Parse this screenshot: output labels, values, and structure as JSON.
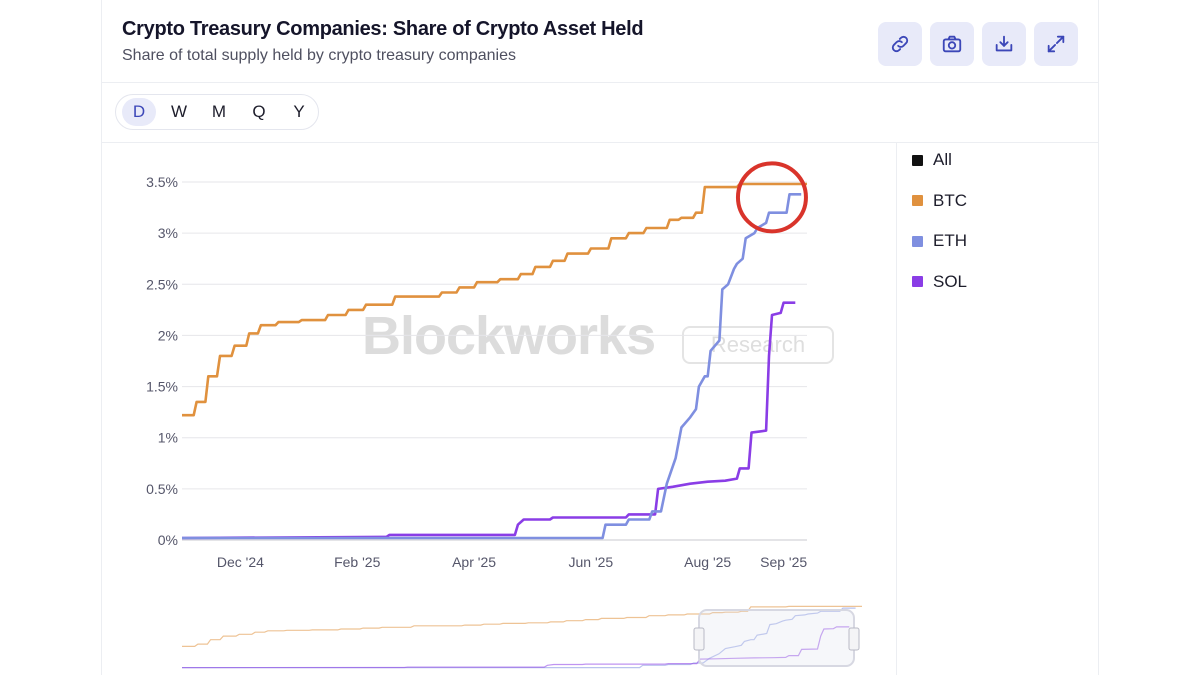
{
  "header": {
    "title": "Crypto Treasury Companies: Share of Crypto Asset Held",
    "subtitle": "Share of total supply held by crypto treasury companies"
  },
  "toolbar": {
    "icons": [
      "link-icon",
      "camera-icon",
      "download-icon",
      "expand-icon"
    ]
  },
  "timeframes": {
    "options": [
      "D",
      "W",
      "M",
      "Q",
      "Y"
    ],
    "selected": "D"
  },
  "legend": {
    "items": [
      {
        "label": "All",
        "color": "#111111"
      },
      {
        "label": "BTC",
        "color": "#e0913e"
      },
      {
        "label": "ETH",
        "color": "#7f8fe0"
      },
      {
        "label": "SOL",
        "color": "#8a3de6"
      }
    ]
  },
  "watermark": {
    "brand": "Blockworks",
    "badge": "Research"
  },
  "annotation": {
    "type": "circle",
    "color": "#d9342b",
    "target": "end of ETH and BTC lines"
  },
  "chart_data": {
    "type": "line",
    "title": "Crypto Treasury Companies: Share of Crypto Asset Held",
    "subtitle": "Share of total supply held by crypto treasury companies",
    "xlabel": "",
    "ylabel": "",
    "x_range": [
      0,
      10.7
    ],
    "x_unit": "months since 2024-11-01",
    "ylim": [
      0,
      3.5
    ],
    "y_ticks": [
      0,
      0.5,
      1,
      1.5,
      2,
      2.5,
      3,
      3.5
    ],
    "y_tick_labels": [
      "0%",
      "0.5%",
      "1%",
      "1.5%",
      "2%",
      "2.5%",
      "3%",
      "3.5%"
    ],
    "x_ticks": [
      1,
      3,
      5,
      7,
      9,
      10.3
    ],
    "x_tick_labels": [
      "Dec '24",
      "Feb '25",
      "Apr '25",
      "Jun '25",
      "Aug '25",
      "Sep '25"
    ],
    "grid": true,
    "legend_position": "right",
    "series": [
      {
        "name": "BTC",
        "color": "#e0913e",
        "points": [
          [
            0,
            1.22
          ],
          [
            0.2,
            1.22
          ],
          [
            0.25,
            1.35
          ],
          [
            0.4,
            1.35
          ],
          [
            0.45,
            1.6
          ],
          [
            0.6,
            1.6
          ],
          [
            0.65,
            1.8
          ],
          [
            0.85,
            1.8
          ],
          [
            0.9,
            1.9
          ],
          [
            1.1,
            1.9
          ],
          [
            1.15,
            2.02
          ],
          [
            1.3,
            2.02
          ],
          [
            1.35,
            2.1
          ],
          [
            1.6,
            2.1
          ],
          [
            1.65,
            2.13
          ],
          [
            2.0,
            2.13
          ],
          [
            2.05,
            2.15
          ],
          [
            2.45,
            2.15
          ],
          [
            2.5,
            2.2
          ],
          [
            2.8,
            2.2
          ],
          [
            2.85,
            2.25
          ],
          [
            3.1,
            2.25
          ],
          [
            3.15,
            2.3
          ],
          [
            3.6,
            2.3
          ],
          [
            3.65,
            2.38
          ],
          [
            4.4,
            2.38
          ],
          [
            4.45,
            2.42
          ],
          [
            4.7,
            2.42
          ],
          [
            4.75,
            2.47
          ],
          [
            5.0,
            2.47
          ],
          [
            5.05,
            2.52
          ],
          [
            5.4,
            2.52
          ],
          [
            5.45,
            2.55
          ],
          [
            5.75,
            2.55
          ],
          [
            5.8,
            2.6
          ],
          [
            6.0,
            2.6
          ],
          [
            6.05,
            2.67
          ],
          [
            6.3,
            2.67
          ],
          [
            6.35,
            2.73
          ],
          [
            6.55,
            2.73
          ],
          [
            6.6,
            2.8
          ],
          [
            6.95,
            2.8
          ],
          [
            7.0,
            2.85
          ],
          [
            7.3,
            2.85
          ],
          [
            7.35,
            2.95
          ],
          [
            7.6,
            2.95
          ],
          [
            7.65,
            3.0
          ],
          [
            7.9,
            3.0
          ],
          [
            7.95,
            3.05
          ],
          [
            8.3,
            3.05
          ],
          [
            8.35,
            3.13
          ],
          [
            8.5,
            3.13
          ],
          [
            8.55,
            3.15
          ],
          [
            8.75,
            3.15
          ],
          [
            8.8,
            3.2
          ],
          [
            8.9,
            3.2
          ],
          [
            8.95,
            3.45
          ],
          [
            9.5,
            3.45
          ],
          [
            9.55,
            3.48
          ],
          [
            10.7,
            3.48
          ]
        ]
      },
      {
        "name": "ETH",
        "color": "#7f8fe0",
        "points": [
          [
            0,
            0.02
          ],
          [
            7.2,
            0.02
          ],
          [
            7.25,
            0.15
          ],
          [
            7.6,
            0.15
          ],
          [
            7.65,
            0.2
          ],
          [
            8.0,
            0.2
          ],
          [
            8.05,
            0.28
          ],
          [
            8.2,
            0.28
          ],
          [
            8.3,
            0.55
          ],
          [
            8.45,
            0.8
          ],
          [
            8.55,
            1.1
          ],
          [
            8.7,
            1.2
          ],
          [
            8.8,
            1.28
          ],
          [
            8.85,
            1.5
          ],
          [
            8.95,
            1.6
          ],
          [
            9.0,
            1.6
          ],
          [
            9.05,
            1.85
          ],
          [
            9.2,
            1.95
          ],
          [
            9.25,
            2.45
          ],
          [
            9.35,
            2.5
          ],
          [
            9.45,
            2.65
          ],
          [
            9.5,
            2.7
          ],
          [
            9.6,
            2.75
          ],
          [
            9.65,
            2.95
          ],
          [
            9.8,
            3.0
          ],
          [
            9.85,
            3.05
          ],
          [
            10.0,
            3.1
          ],
          [
            10.05,
            3.2
          ],
          [
            10.35,
            3.2
          ],
          [
            10.4,
            3.38
          ],
          [
            10.6,
            3.38
          ]
        ]
      },
      {
        "name": "SOL",
        "color": "#8a3de6",
        "points": [
          [
            0,
            0.02
          ],
          [
            3.5,
            0.03
          ],
          [
            3.55,
            0.05
          ],
          [
            5.7,
            0.05
          ],
          [
            5.75,
            0.15
          ],
          [
            5.85,
            0.2
          ],
          [
            6.3,
            0.2
          ],
          [
            6.35,
            0.22
          ],
          [
            7.6,
            0.22
          ],
          [
            7.65,
            0.25
          ],
          [
            8.1,
            0.25
          ],
          [
            8.15,
            0.5
          ],
          [
            8.4,
            0.52
          ],
          [
            8.7,
            0.55
          ],
          [
            9.0,
            0.57
          ],
          [
            9.3,
            0.58
          ],
          [
            9.5,
            0.6
          ],
          [
            9.55,
            0.7
          ],
          [
            9.7,
            0.7
          ],
          [
            9.75,
            1.05
          ],
          [
            10.0,
            1.07
          ],
          [
            10.05,
            1.8
          ],
          [
            10.1,
            2.2
          ],
          [
            10.25,
            2.22
          ],
          [
            10.3,
            2.32
          ],
          [
            10.5,
            2.32
          ]
        ]
      }
    ]
  }
}
